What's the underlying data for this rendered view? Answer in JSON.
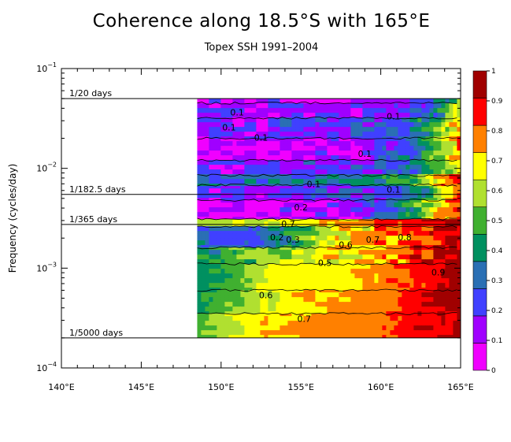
{
  "chart_data": {
    "type": "heatmap",
    "title": "Coherence along 18.5°S with 165°E",
    "subtitle": "Topex SSH 1991–2004",
    "ylabel": "Frequency (cycles/day)",
    "xlabel": "",
    "x_ticks": [
      "140°E",
      "145°E",
      "150°E",
      "155°E",
      "160°E",
      "165°E"
    ],
    "x_tick_values": [
      140,
      145,
      150,
      155,
      160,
      165
    ],
    "xlim": [
      140,
      165
    ],
    "y_scale": "log",
    "ylim": [
      0.0001,
      0.1
    ],
    "y_ticks": [
      {
        "base": "10",
        "exp": "−1",
        "value": 0.1
      },
      {
        "base": "10",
        "exp": "−2",
        "value": 0.01
      },
      {
        "base": "10",
        "exp": "−3",
        "value": 0.001
      },
      {
        "base": "10",
        "exp": "−4",
        "value": 0.0001
      }
    ],
    "reference_lines": [
      {
        "label": "1/20 days",
        "frequency": 0.05
      },
      {
        "label": "1/182.5 days",
        "frequency": 0.00548
      },
      {
        "label": "1/365 days",
        "frequency": 0.00274
      },
      {
        "label": "1/5000 days",
        "frequency": 0.0002
      }
    ],
    "data_region": {
      "lon_min": 148.5,
      "lon_max": 165,
      "freq_min": 0.0002,
      "freq_max": 0.05
    },
    "colorbar": {
      "levels": [
        0,
        0.1,
        0.2,
        0.3,
        0.4,
        0.5,
        0.6,
        0.7,
        0.8,
        0.9,
        1
      ],
      "labels": [
        "0",
        "0.1",
        "0.2",
        "0.3",
        "0.4",
        "0.5",
        "0.6",
        "0.7",
        "0.8",
        "0.9",
        "1"
      ],
      "colors": [
        "#f000ff",
        "#a000ff",
        "#4040ff",
        "#2a6fb4",
        "#009060",
        "#40b030",
        "#b0e030",
        "#ffff00",
        "#ff8000",
        "#ff0000",
        "#a00000"
      ]
    },
    "bands": [
      {
        "freq_top": 0.05,
        "freq_bottom": 0.045,
        "pattern": "noisy",
        "base": 1,
        "lon_ramp": [
          [
            148.5,
            1
          ],
          [
            162,
            1
          ],
          [
            163.5,
            3
          ],
          [
            165,
            6
          ]
        ]
      },
      {
        "freq_top": 0.045,
        "freq_bottom": 0.032,
        "pattern": "noisy",
        "base": 1,
        "lon_ramp": [
          [
            148.5,
            1
          ],
          [
            160,
            1
          ],
          [
            162.5,
            2
          ],
          [
            164,
            4
          ],
          [
            165,
            7
          ]
        ]
      },
      {
        "freq_top": 0.032,
        "freq_bottom": 0.02,
        "pattern": "noisy",
        "base": 1,
        "lon_ramp": [
          [
            148.5,
            1
          ],
          [
            160,
            2
          ],
          [
            163,
            4
          ],
          [
            165,
            8
          ]
        ]
      },
      {
        "freq_top": 0.02,
        "freq_bottom": 0.012,
        "pattern": "noisy",
        "base": 0,
        "lon_ramp": [
          [
            148.5,
            0
          ],
          [
            159,
            1
          ],
          [
            162,
            3
          ],
          [
            164,
            6
          ],
          [
            165,
            8
          ]
        ]
      },
      {
        "freq_top": 0.012,
        "freq_bottom": 0.0085,
        "pattern": "noisy",
        "base": 1,
        "lon_ramp": [
          [
            148.5,
            1
          ],
          [
            160,
            2
          ],
          [
            163,
            4
          ],
          [
            165,
            7
          ]
        ]
      },
      {
        "freq_top": 0.0085,
        "freq_bottom": 0.0068,
        "pattern": "noisy",
        "base": 2,
        "lon_ramp": [
          [
            148.5,
            3
          ],
          [
            158,
            3
          ],
          [
            162,
            5
          ],
          [
            165,
            9
          ]
        ]
      },
      {
        "freq_top": 0.0068,
        "freq_bottom": 0.0048,
        "pattern": "noisy",
        "base": 1,
        "lon_ramp": [
          [
            148.5,
            1
          ],
          [
            160,
            2
          ],
          [
            163,
            4
          ],
          [
            165,
            9
          ]
        ]
      },
      {
        "freq_top": 0.0048,
        "freq_bottom": 0.0031,
        "pattern": "noisy",
        "base": 0,
        "lon_ramp": [
          [
            148.5,
            0
          ],
          [
            158,
            1
          ],
          [
            161,
            3
          ],
          [
            163,
            6
          ],
          [
            165,
            9
          ]
        ]
      },
      {
        "freq_top": 0.0031,
        "freq_bottom": 0.0026,
        "pattern": "smooth",
        "base": 7,
        "lon_ramp": [
          [
            148.5,
            6
          ],
          [
            155,
            7
          ],
          [
            159,
            8
          ],
          [
            162,
            9
          ],
          [
            165,
            10
          ]
        ]
      },
      {
        "freq_top": 0.0026,
        "freq_bottom": 0.0016,
        "pattern": "noisy",
        "base": 2,
        "lon_ramp": [
          [
            148.5,
            3
          ],
          [
            152,
            2
          ],
          [
            155,
            5
          ],
          [
            158,
            7
          ],
          [
            161,
            8
          ],
          [
            163,
            9
          ],
          [
            165,
            10
          ]
        ]
      },
      {
        "freq_top": 0.0016,
        "freq_bottom": 0.0011,
        "pattern": "noisy",
        "base": 4,
        "lon_ramp": [
          [
            148.5,
            4
          ],
          [
            152,
            5
          ],
          [
            155,
            6
          ],
          [
            158,
            7
          ],
          [
            161,
            8
          ],
          [
            163,
            9
          ],
          [
            165,
            10
          ]
        ]
      },
      {
        "freq_top": 0.0011,
        "freq_bottom": 0.0006,
        "pattern": "smooth",
        "base": 5,
        "lon_ramp": [
          [
            148.5,
            4
          ],
          [
            151,
            5
          ],
          [
            153,
            7
          ],
          [
            158,
            7
          ],
          [
            160,
            8
          ],
          [
            163,
            9
          ],
          [
            165,
            10
          ]
        ]
      },
      {
        "freq_top": 0.0006,
        "freq_bottom": 0.00035,
        "pattern": "smooth",
        "base": 5,
        "lon_ramp": [
          [
            148.5,
            4
          ],
          [
            150,
            5
          ],
          [
            152,
            6
          ],
          [
            154,
            7
          ],
          [
            160,
            8
          ],
          [
            162,
            9
          ],
          [
            165,
            10
          ]
        ]
      },
      {
        "freq_top": 0.00035,
        "freq_bottom": 0.0002,
        "pattern": "smooth",
        "base": 6,
        "lon_ramp": [
          [
            148.5,
            5
          ],
          [
            150,
            6
          ],
          [
            152,
            7
          ],
          [
            156,
            8
          ],
          [
            160,
            8
          ],
          [
            162,
            9
          ],
          [
            165,
            10
          ]
        ]
      }
    ],
    "contour_labels": [
      {
        "text": "0.1",
        "lon": 151,
        "freq": 0.034
      },
      {
        "text": "0.1",
        "lon": 160.8,
        "freq": 0.031
      },
      {
        "text": "0.1",
        "lon": 150.5,
        "freq": 0.024
      },
      {
        "text": "0.1",
        "lon": 152.5,
        "freq": 0.019
      },
      {
        "text": "0.1",
        "lon": 159,
        "freq": 0.013
      },
      {
        "text": "0.1",
        "lon": 155.8,
        "freq": 0.0065
      },
      {
        "text": "0.1",
        "lon": 160.8,
        "freq": 0.0057
      },
      {
        "text": "0.2",
        "lon": 155,
        "freq": 0.0038
      },
      {
        "text": "0.7",
        "lon": 154.2,
        "freq": 0.0026
      },
      {
        "text": "0.8",
        "lon": 161.5,
        "freq": 0.0019
      },
      {
        "text": "0.3",
        "lon": 154.5,
        "freq": 0.0018
      },
      {
        "text": "0.2",
        "lon": 153.5,
        "freq": 0.0019
      },
      {
        "text": "0.6",
        "lon": 157.8,
        "freq": 0.0016
      },
      {
        "text": "0.7",
        "lon": 159.5,
        "freq": 0.0018
      },
      {
        "text": "0.5",
        "lon": 156.5,
        "freq": 0.00105
      },
      {
        "text": "0.9",
        "lon": 163.6,
        "freq": 0.00085
      },
      {
        "text": "0.6",
        "lon": 152.8,
        "freq": 0.0005
      },
      {
        "text": "0.7",
        "lon": 155.2,
        "freq": 0.00029
      }
    ]
  }
}
